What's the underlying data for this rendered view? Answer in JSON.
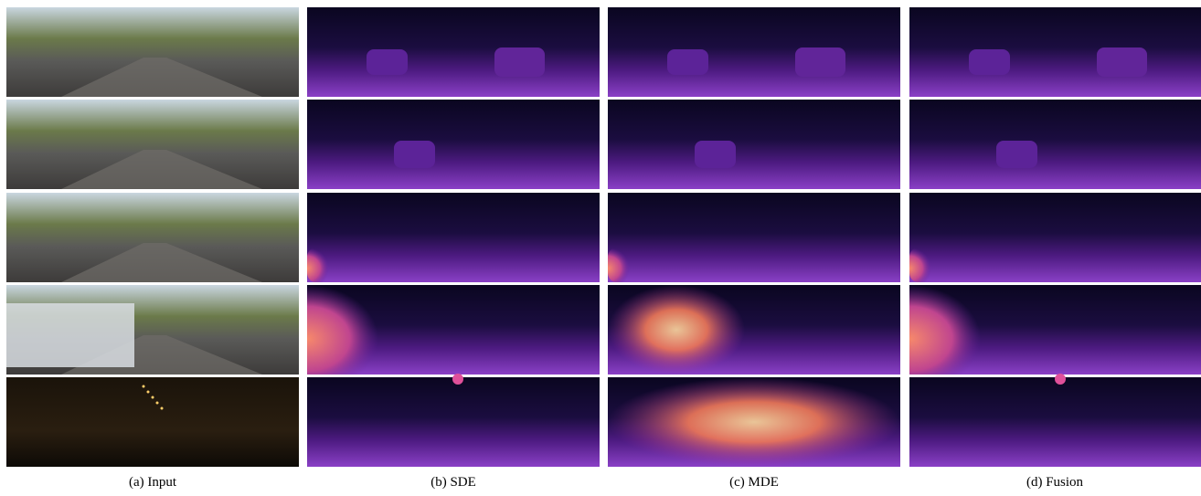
{
  "captions": [
    "(a) Input",
    "(b) SDE",
    "(c) MDE",
    "(d) Fusion"
  ]
}
